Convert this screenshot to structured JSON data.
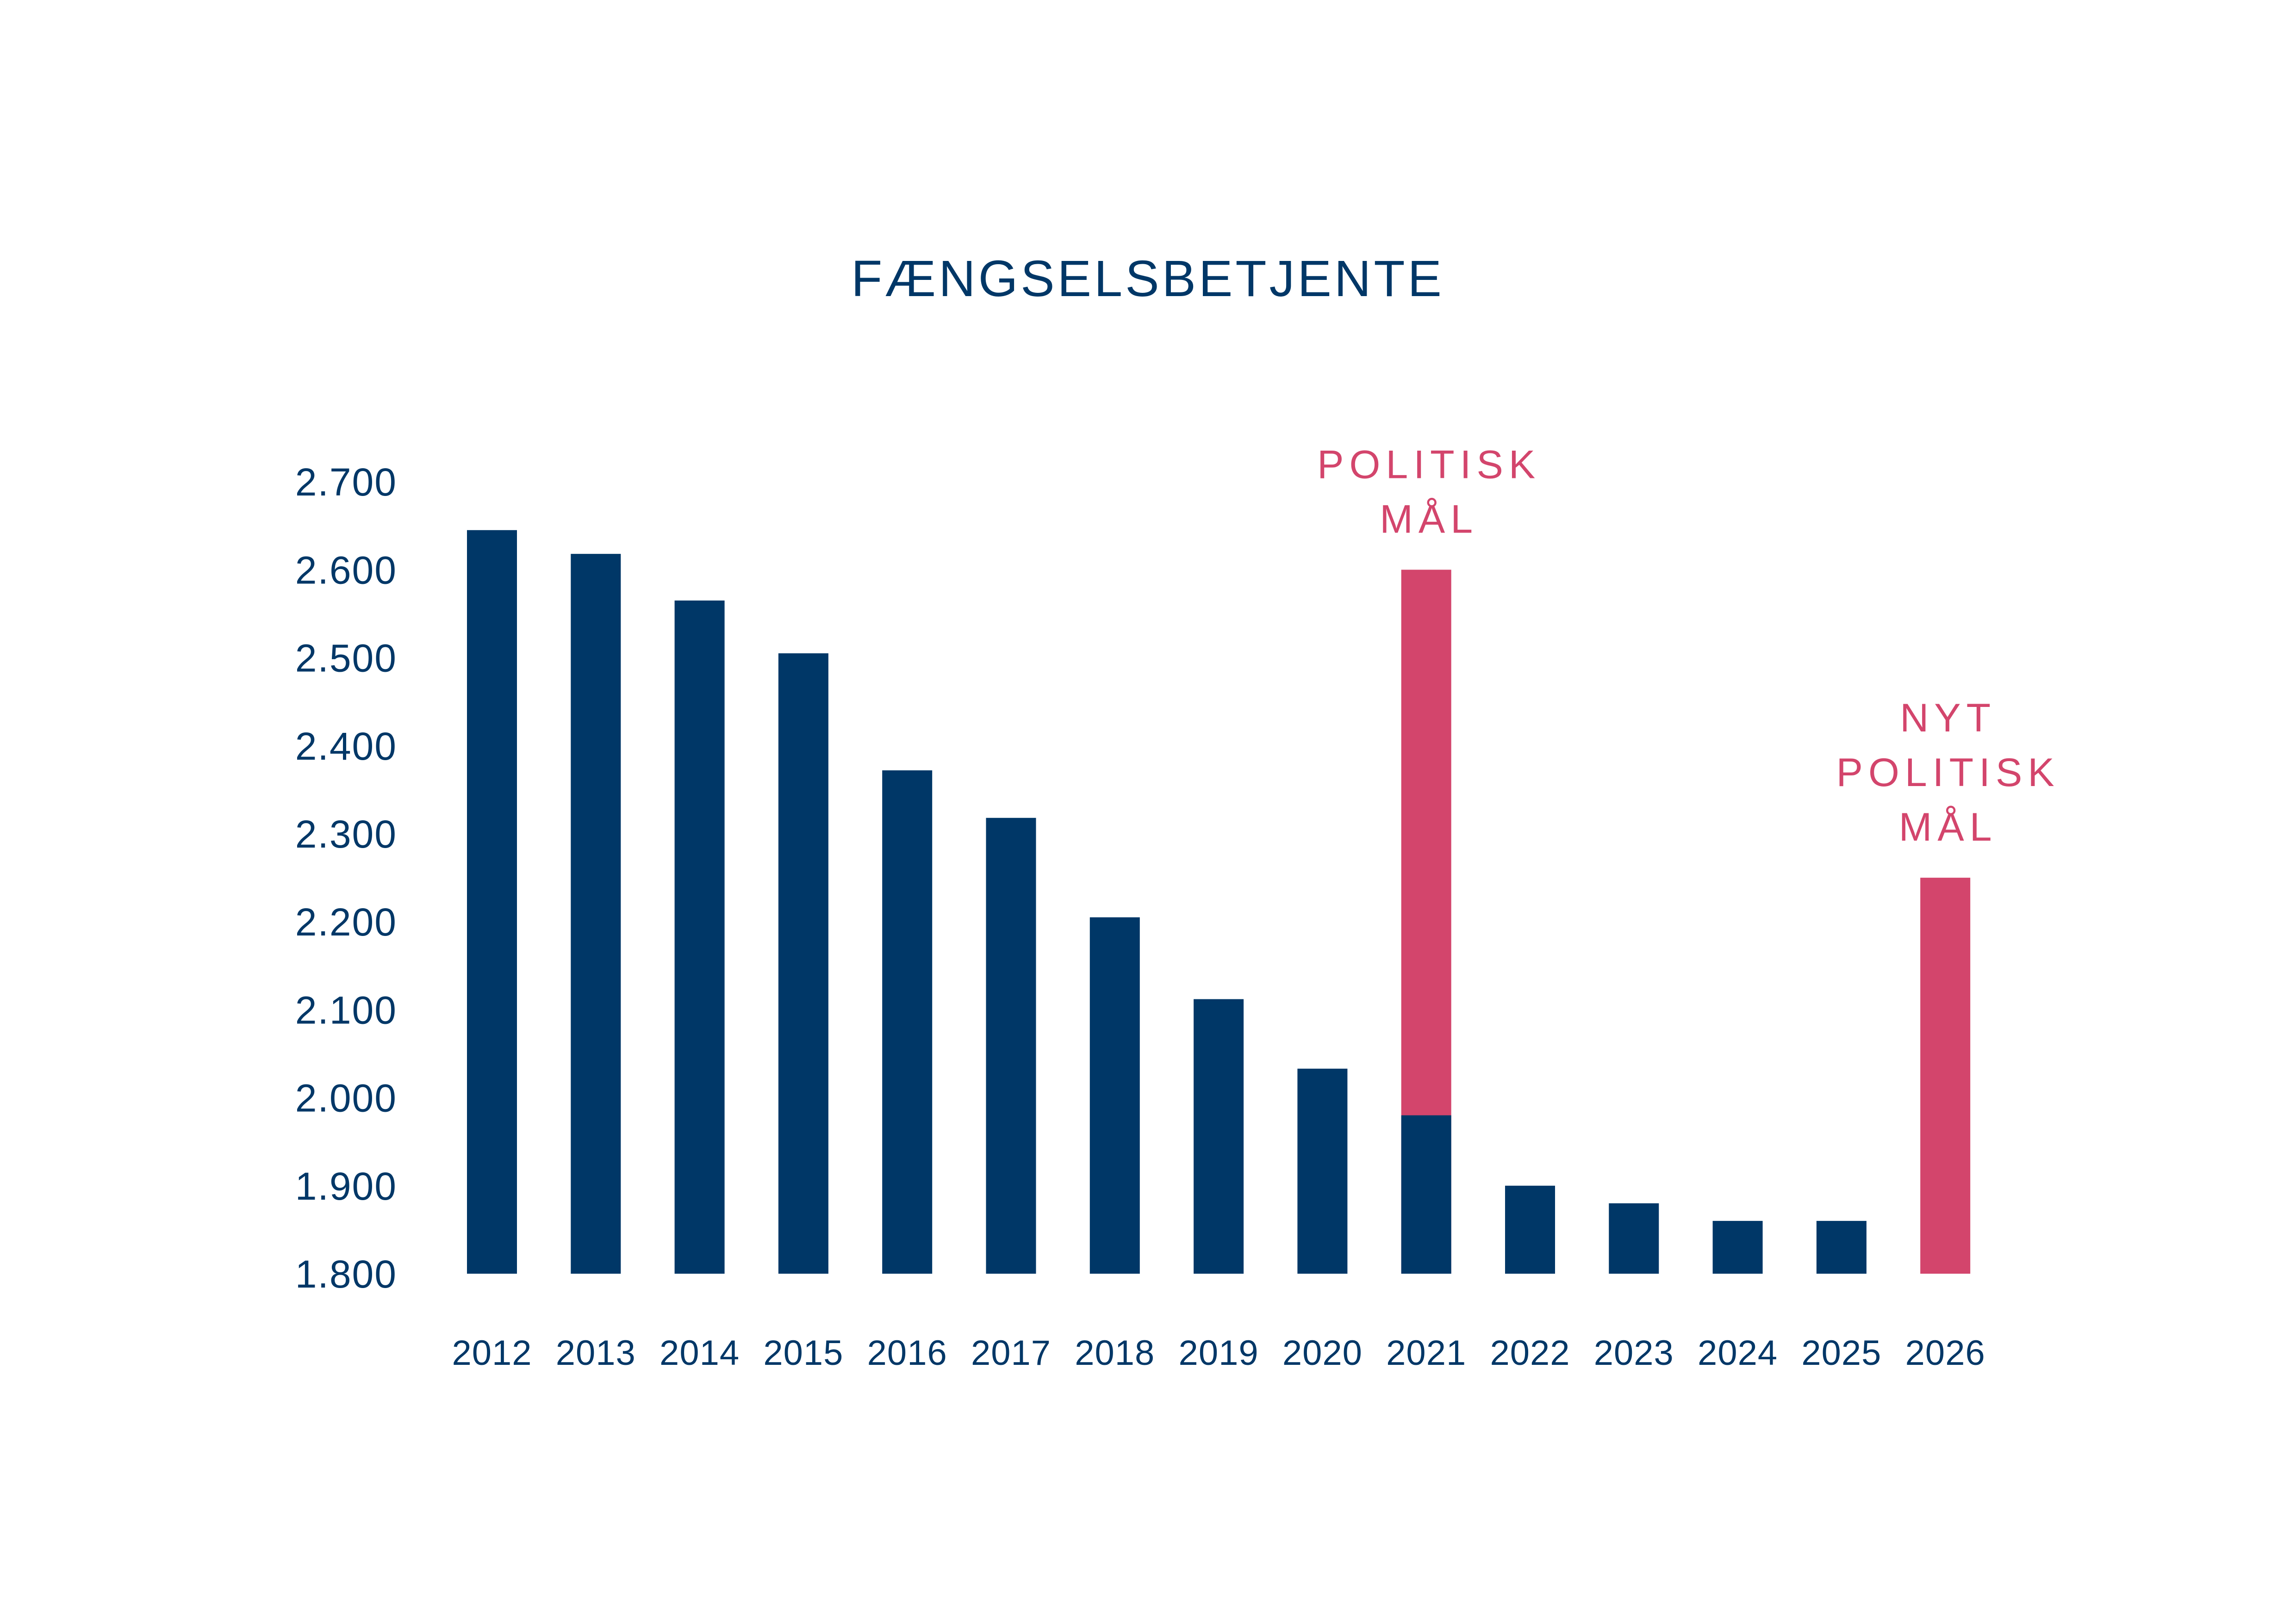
{
  "chart_data": {
    "type": "bar",
    "title": "FÆNGSELSBETJENTE",
    "xlabel": "",
    "ylabel": "",
    "ylim": [
      1800,
      2700
    ],
    "yticks": [
      1800,
      1900,
      2000,
      2100,
      2200,
      2300,
      2400,
      2500,
      2600,
      2700
    ],
    "ytick_labels": [
      "1.800",
      "1.900",
      "2.000",
      "2.100",
      "2.200",
      "2.300",
      "2.400",
      "2.500",
      "2.600",
      "2.700"
    ],
    "grid": false,
    "legend": "none",
    "categories": [
      "2012",
      "2013",
      "2014",
      "2015",
      "2016",
      "2017",
      "2018",
      "2019",
      "2020",
      "2021",
      "2022",
      "2023",
      "2024",
      "2025",
      "2026"
    ],
    "series": [
      {
        "name": "Fængselsbetjente",
        "color": "#003767",
        "values": [
          2645,
          2618,
          2565,
          2505,
          2372,
          2318,
          2205,
          2112,
          2033,
          1980,
          1900,
          1880,
          1860,
          1860,
          null
        ]
      },
      {
        "name": "Politisk mål",
        "color": "#d3456c",
        "values": [
          null,
          null,
          null,
          null,
          null,
          null,
          null,
          null,
          null,
          2600,
          null,
          null,
          null,
          null,
          2250
        ]
      }
    ],
    "annotations": [
      {
        "category": "2021",
        "lines": [
          "POLITISK",
          "MÅL"
        ]
      },
      {
        "category": "2026",
        "lines": [
          "NYT",
          "POLITISK",
          "MÅL"
        ]
      }
    ]
  }
}
